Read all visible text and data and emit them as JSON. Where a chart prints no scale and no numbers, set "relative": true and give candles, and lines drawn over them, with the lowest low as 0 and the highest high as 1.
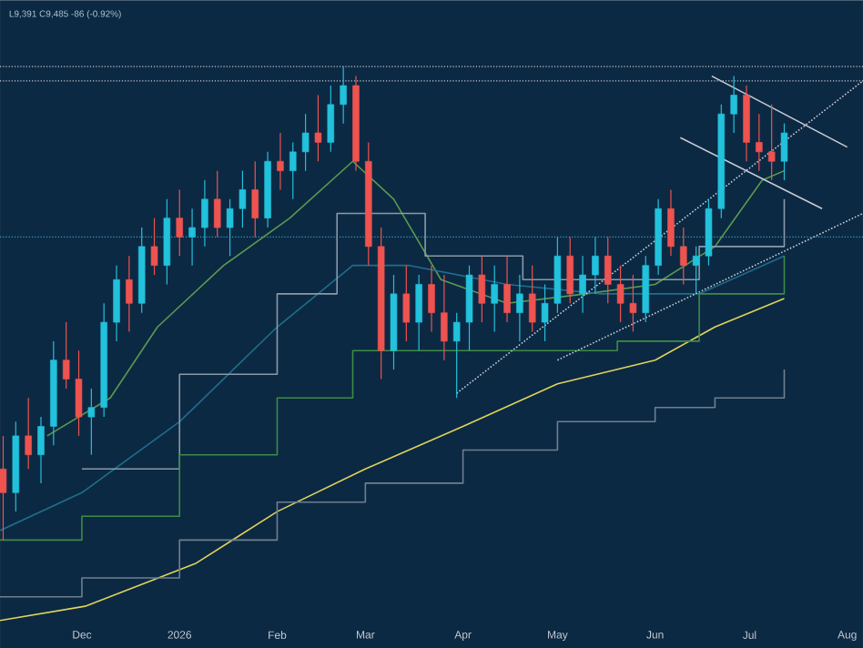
{
  "chart_data": {
    "type": "candlestick",
    "relative": true,
    "tick_labels": "x",
    "annotations": [
      "L9,391 C9,485 -86 (-0.92%)"
    ],
    "xlim": [
      "2025-11-05",
      "2026-08-06"
    ],
    "xticks": [
      {
        "value": "2025-12-01",
        "label": "Dec"
      },
      {
        "value": "2026-01-01",
        "label": "2026"
      },
      {
        "value": "2026-02-01",
        "label": "Feb"
      },
      {
        "value": "2026-03-01",
        "label": "Mar"
      },
      {
        "value": "2026-04-01",
        "label": "Apr"
      },
      {
        "value": "2026-05-01",
        "label": "May"
      },
      {
        "value": "2026-06-01",
        "label": "Jun"
      },
      {
        "value": "2026-07-01",
        "label": "Jul"
      },
      {
        "value": "2026-08-01",
        "label": "Aug"
      }
    ],
    "x": [
      "2025-11-06",
      "2025-11-10",
      "2025-11-14",
      "2025-11-18",
      "2025-11-22",
      "2025-11-26",
      "2025-11-30",
      "2025-12-04",
      "2025-12-08",
      "2025-12-12",
      "2025-12-16",
      "2025-12-20",
      "2025-12-24",
      "2025-12-28",
      "2026-01-01",
      "2026-01-05",
      "2026-01-09",
      "2026-01-13",
      "2026-01-17",
      "2026-01-21",
      "2026-01-25",
      "2026-01-29",
      "2026-02-02",
      "2026-02-06",
      "2026-02-10",
      "2026-02-14",
      "2026-02-18",
      "2026-02-22",
      "2026-02-26",
      "2026-03-02",
      "2026-03-06",
      "2026-03-10",
      "2026-03-14",
      "2026-03-18",
      "2026-03-22",
      "2026-03-26",
      "2026-03-30",
      "2026-04-03",
      "2026-04-07",
      "2026-04-11",
      "2026-04-15",
      "2026-04-19",
      "2026-04-23",
      "2026-04-27",
      "2026-05-01",
      "2026-05-05",
      "2026-05-09",
      "2026-05-13",
      "2026-05-17",
      "2026-05-21",
      "2026-05-25",
      "2026-05-29",
      "2026-06-02",
      "2026-06-06",
      "2026-06-10",
      "2026-06-14",
      "2026-06-18",
      "2026-06-22",
      "2026-06-26",
      "2026-06-30",
      "2026-07-04",
      "2026-07-08",
      "2026-07-12"
    ],
    "ohlc": [
      [
        0.15,
        0.22,
        0.0,
        0.1
      ],
      [
        0.1,
        0.25,
        0.06,
        0.22
      ],
      [
        0.22,
        0.3,
        0.15,
        0.18
      ],
      [
        0.18,
        0.26,
        0.12,
        0.24
      ],
      [
        0.24,
        0.42,
        0.2,
        0.38
      ],
      [
        0.38,
        0.46,
        0.32,
        0.34
      ],
      [
        0.34,
        0.4,
        0.22,
        0.26
      ],
      [
        0.26,
        0.32,
        0.18,
        0.28
      ],
      [
        0.28,
        0.5,
        0.26,
        0.46
      ],
      [
        0.46,
        0.58,
        0.42,
        0.55
      ],
      [
        0.55,
        0.6,
        0.44,
        0.5
      ],
      [
        0.5,
        0.66,
        0.48,
        0.62
      ],
      [
        0.62,
        0.68,
        0.56,
        0.58
      ],
      [
        0.58,
        0.72,
        0.54,
        0.68
      ],
      [
        0.68,
        0.74,
        0.6,
        0.64
      ],
      [
        0.64,
        0.7,
        0.58,
        0.66
      ],
      [
        0.66,
        0.76,
        0.62,
        0.72
      ],
      [
        0.72,
        0.78,
        0.64,
        0.66
      ],
      [
        0.66,
        0.72,
        0.6,
        0.7
      ],
      [
        0.7,
        0.78,
        0.66,
        0.74
      ],
      [
        0.74,
        0.8,
        0.64,
        0.68
      ],
      [
        0.68,
        0.82,
        0.66,
        0.8
      ],
      [
        0.8,
        0.86,
        0.74,
        0.78
      ],
      [
        0.78,
        0.84,
        0.72,
        0.82
      ],
      [
        0.82,
        0.9,
        0.78,
        0.86
      ],
      [
        0.86,
        0.94,
        0.8,
        0.84
      ],
      [
        0.84,
        0.96,
        0.82,
        0.92
      ],
      [
        0.92,
        1.0,
        0.88,
        0.96
      ],
      [
        0.96,
        0.98,
        0.78,
        0.8
      ],
      [
        0.8,
        0.84,
        0.58,
        0.62
      ],
      [
        0.62,
        0.66,
        0.34,
        0.4
      ],
      [
        0.4,
        0.56,
        0.36,
        0.52
      ],
      [
        0.52,
        0.58,
        0.42,
        0.46
      ],
      [
        0.46,
        0.56,
        0.4,
        0.54
      ],
      [
        0.54,
        0.58,
        0.44,
        0.48
      ],
      [
        0.48,
        0.56,
        0.38,
        0.42
      ],
      [
        0.42,
        0.48,
        0.3,
        0.46
      ],
      [
        0.46,
        0.58,
        0.4,
        0.56
      ],
      [
        0.56,
        0.6,
        0.46,
        0.5
      ],
      [
        0.5,
        0.58,
        0.44,
        0.54
      ],
      [
        0.54,
        0.6,
        0.46,
        0.48
      ],
      [
        0.48,
        0.56,
        0.42,
        0.52
      ],
      [
        0.52,
        0.58,
        0.44,
        0.46
      ],
      [
        0.46,
        0.54,
        0.42,
        0.5
      ],
      [
        0.5,
        0.64,
        0.48,
        0.6
      ],
      [
        0.6,
        0.64,
        0.5,
        0.52
      ],
      [
        0.52,
        0.6,
        0.48,
        0.56
      ],
      [
        0.56,
        0.64,
        0.52,
        0.6
      ],
      [
        0.6,
        0.64,
        0.5,
        0.54
      ],
      [
        0.54,
        0.58,
        0.46,
        0.5
      ],
      [
        0.5,
        0.56,
        0.44,
        0.48
      ],
      [
        0.48,
        0.6,
        0.46,
        0.58
      ],
      [
        0.58,
        0.72,
        0.56,
        0.7
      ],
      [
        0.7,
        0.74,
        0.6,
        0.62
      ],
      [
        0.62,
        0.66,
        0.54,
        0.58
      ],
      [
        0.58,
        0.62,
        0.52,
        0.6
      ],
      [
        0.6,
        0.72,
        0.58,
        0.7
      ],
      [
        0.7,
        0.92,
        0.68,
        0.9
      ],
      [
        0.9,
        0.98,
        0.86,
        0.94
      ],
      [
        0.94,
        0.96,
        0.8,
        0.84
      ],
      [
        0.84,
        0.9,
        0.78,
        0.82
      ],
      [
        0.82,
        0.92,
        0.76,
        0.8
      ],
      [
        0.8,
        0.88,
        0.76,
        0.86
      ]
    ],
    "colors": [
      "#ef5350",
      "#22c1dc",
      "#ef5350",
      "#22c1dc",
      "#22c1dc",
      "#ef5350",
      "#ef5350",
      "#22c1dc",
      "#22c1dc",
      "#22c1dc",
      "#ef5350",
      "#22c1dc",
      "#ef5350",
      "#22c1dc",
      "#ef5350",
      "#22c1dc",
      "#22c1dc",
      "#ef5350",
      "#22c1dc",
      "#22c1dc",
      "#ef5350",
      "#22c1dc",
      "#ef5350",
      "#22c1dc",
      "#22c1dc",
      "#ef5350",
      "#22c1dc",
      "#22c1dc",
      "#ef5350",
      "#ef5350",
      "#ef5350",
      "#22c1dc",
      "#ef5350",
      "#22c1dc",
      "#ef5350",
      "#ef5350",
      "#22c1dc",
      "#22c1dc",
      "#ef5350",
      "#22c1dc",
      "#ef5350",
      "#22c1dc",
      "#ef5350",
      "#22c1dc",
      "#22c1dc",
      "#ef5350",
      "#22c1dc",
      "#22c1dc",
      "#ef5350",
      "#ef5350",
      "#ef5350",
      "#22c1dc",
      "#22c1dc",
      "#ef5350",
      "#ef5350",
      "#22c1dc",
      "#22c1dc",
      "#22c1dc",
      "#22c1dc",
      "#ef5350",
      "#ef5350",
      "#ef5350",
      "#22c1dc"
    ],
    "series": [
      {
        "type": "line",
        "color": "#e0d45a",
        "x": [
          "2025-11-05",
          "2025-12-02",
          "2026-01-06",
          "2026-02-01",
          "2026-03-01",
          "2026-04-01",
          "2026-05-01",
          "2026-06-01",
          "2026-06-20",
          "2026-07-12"
        ],
        "values": [
          -0.17,
          -0.14,
          -0.05,
          0.06,
          0.15,
          0.24,
          0.33,
          0.38,
          0.45,
          0.51
        ]
      },
      {
        "type": "line",
        "color": "#5a9a50",
        "x": [
          "2025-11-20",
          "2025-12-10",
          "2025-12-25",
          "2026-01-15",
          "2026-02-05",
          "2026-02-25",
          "2026-03-10",
          "2026-03-25",
          "2026-04-15",
          "2026-05-10",
          "2026-06-01",
          "2026-06-20",
          "2026-07-05",
          "2026-07-12"
        ],
        "values": [
          0.22,
          0.3,
          0.45,
          0.58,
          0.68,
          0.8,
          0.72,
          0.55,
          0.5,
          0.52,
          0.54,
          0.62,
          0.76,
          0.78
        ]
      },
      {
        "type": "line",
        "color": "#1f6e8c",
        "x": [
          "2025-11-05",
          "2025-12-01",
          "2026-01-01",
          "2026-02-01",
          "2026-02-25",
          "2026-03-15",
          "2026-04-15",
          "2026-05-15",
          "2026-06-15",
          "2026-07-12"
        ],
        "values": [
          0.02,
          0.1,
          0.25,
          0.45,
          0.58,
          0.58,
          0.54,
          0.52,
          0.52,
          0.6
        ]
      },
      {
        "type": "step",
        "color": "#8a9aa8",
        "x": [
          "2025-12-01",
          "2026-01-01",
          "2026-02-01",
          "2026-02-20",
          "2026-03-20",
          "2026-04-20",
          "2026-05-20",
          "2026-06-15",
          "2026-07-12"
        ],
        "values": [
          0.15,
          0.35,
          0.52,
          0.69,
          0.6,
          0.55,
          0.55,
          0.62,
          0.72
        ]
      },
      {
        "type": "step",
        "color": "#3f8a48",
        "x": [
          "2025-11-05",
          "2025-12-01",
          "2026-01-01",
          "2026-02-01",
          "2026-02-25",
          "2026-03-20",
          "2026-05-20",
          "2026-06-15",
          "2026-07-12"
        ],
        "values": [
          0.0,
          0.05,
          0.18,
          0.3,
          0.4,
          0.4,
          0.42,
          0.52,
          0.6
        ]
      },
      {
        "type": "step",
        "color": "#6f7f90",
        "x": [
          "2025-11-05",
          "2025-12-01",
          "2026-01-01",
          "2026-02-01",
          "2026-03-01",
          "2026-04-01",
          "2026-05-01",
          "2026-06-01",
          "2026-06-20",
          "2026-07-12"
        ],
        "values": [
          -0.12,
          -0.08,
          0.0,
          0.08,
          0.12,
          0.19,
          0.25,
          0.28,
          0.3,
          0.36
        ]
      },
      {
        "type": "line",
        "color": "#c8ccd4",
        "x": [
          "2026-06-19",
          "2026-08-01"
        ],
        "values": [
          0.98,
          0.83
        ]
      },
      {
        "type": "line",
        "color": "#c8ccd4",
        "x": [
          "2026-06-09",
          "2026-07-24"
        ],
        "values": [
          0.85,
          0.7
        ]
      },
      {
        "type": "line",
        "color": "#c8ccd4",
        "line_style": "dotted",
        "x": [
          "2026-03-30",
          "2026-08-06"
        ],
        "values": [
          0.31,
          0.97
        ]
      },
      {
        "type": "line",
        "color": "#c8ccd4",
        "line_style": "dotted",
        "x": [
          "2026-05-01",
          "2026-08-06"
        ],
        "values": [
          0.38,
          0.69
        ]
      }
    ],
    "ref_lines": [
      {
        "axis": "y",
        "value": 1.0,
        "color": "#c8ccd4",
        "line_style": "dotted"
      },
      {
        "axis": "y",
        "value": 0.97,
        "color": "#c8ccd4",
        "line_style": "dotted"
      },
      {
        "axis": "y",
        "value": 0.64,
        "color": "#2aa8c8",
        "line_style": "dotted"
      }
    ]
  }
}
